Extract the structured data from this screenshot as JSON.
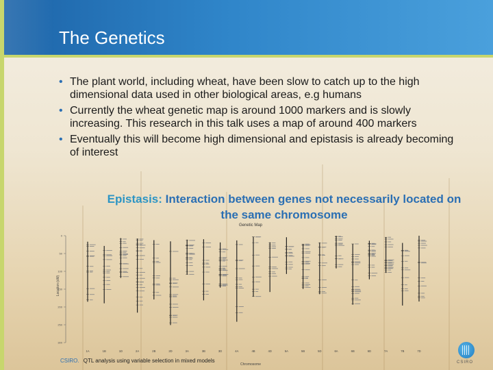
{
  "slide": {
    "title": "The Genetics",
    "bullets": [
      "The plant world, including wheat, have been slow to catch up to the high dimensional data used in other biological areas, e.g humans",
      "Currently the wheat genetic map is around 1000 markers and is slowly increasing. This research in this talk uses a map of around 400 markers",
      "Eventually this will become high dimensional and epistasis is already becoming of interest"
    ],
    "epistasis_keyword": "Epistasis:",
    "epistasis_definition": "Interaction between genes not necessarily located on the same chromosome"
  },
  "genetic_map": {
    "title": "Genetic Map",
    "xlabel": "Chromosome",
    "ylabel": "Location (cM)",
    "y_ticks": [
      0,
      50,
      100,
      150,
      200,
      250,
      300
    ],
    "chromosomes": [
      "1A",
      "1B",
      "1D",
      "2A",
      "2B",
      "2D",
      "3A",
      "3B",
      "3D",
      "4A",
      "4B",
      "4D",
      "5A",
      "5B",
      "5D",
      "6A",
      "6B",
      "6D",
      "7A",
      "7B",
      "7D"
    ]
  },
  "footer": {
    "brand": "CSIRO.",
    "text": "QTL analysis using variable selection in mixed models",
    "logo_text": "CSIRO"
  },
  "colors": {
    "title_bar": "#2f85c9",
    "accent_green": "#c7d66d",
    "emphasis_blue": "#2b6fb3"
  }
}
